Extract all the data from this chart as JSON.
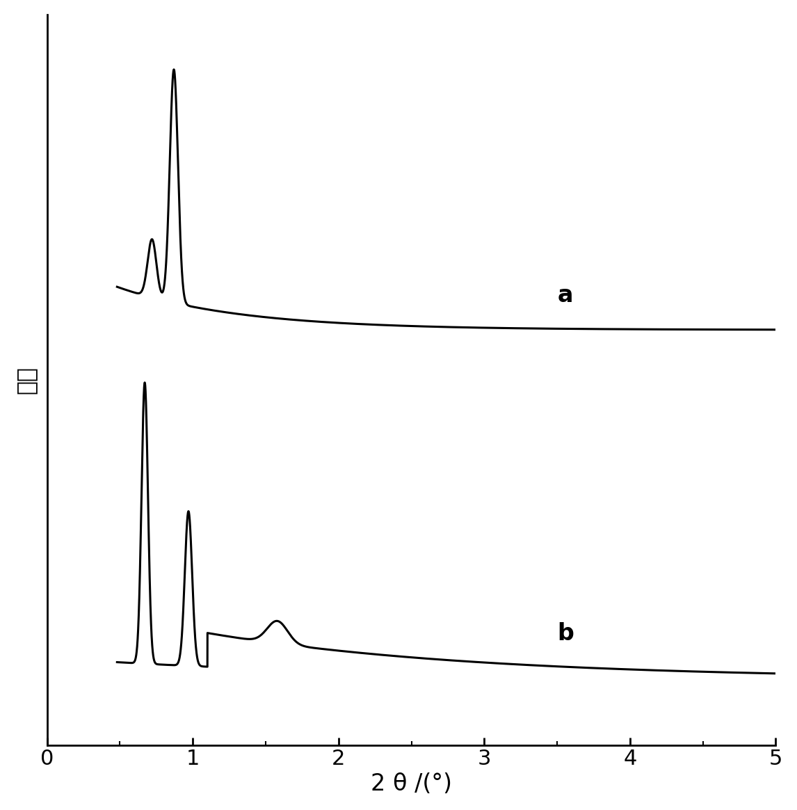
{
  "xlabel": "2 θ /(°)",
  "ylabel": "强度",
  "xlim": [
    0,
    5
  ],
  "label_a": "a",
  "label_b": "b",
  "line_color": "#000000",
  "line_width": 2.2,
  "background_color": "#ffffff",
  "xlabel_fontsize": 24,
  "ylabel_fontsize": 24,
  "tick_fontsize": 22,
  "label_fontsize": 24,
  "xticks": [
    0,
    1,
    2,
    3,
    4,
    5
  ]
}
